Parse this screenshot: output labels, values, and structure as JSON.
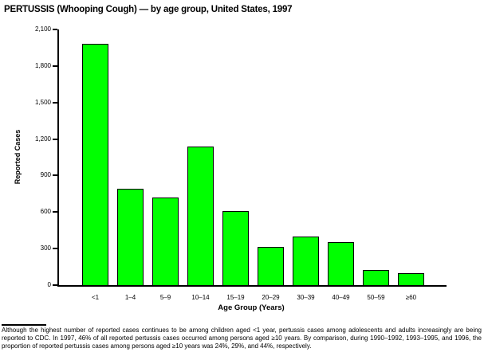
{
  "title": "PERTUSSIS (Whooping Cough) — by age group, United States, 1997",
  "chart_data": {
    "type": "bar",
    "title": "PERTUSSIS (Whooping Cough) — by age group, United States, 1997",
    "categories": [
      "<1",
      "1–4",
      "5–9",
      "10–14",
      "15–19",
      "20–29",
      "30–39",
      "40–49",
      "50–59",
      "≥60"
    ],
    "values": [
      1980,
      790,
      720,
      1140,
      610,
      315,
      400,
      350,
      125,
      95
    ],
    "xlabel": "Age Group (Years)",
    "ylabel": "Reported Cases",
    "ylim": [
      0,
      2100
    ],
    "ytick_step": 300,
    "ytick_labels": [
      "0",
      "300",
      "600",
      "900",
      "1,200",
      "1,500",
      "1,800",
      "2,100"
    ],
    "bar_color": "#00FF00",
    "bar_border_color": "#000000",
    "axis_color": "#000000",
    "grid": false,
    "legend": false
  },
  "footnote": "Although the highest number of reported cases continues to be among children aged <1 year, pertussis cases among adolescents and adults increasingly are being reported to CDC. In 1997, 46% of all reported pertussis cases occurred among persons aged ≥10 years. By comparison, during 1990–1992, 1993–1995, and 1996, the proportion of reported pertussis cases among persons aged ≥10 years was 24%, 29%, and 44%, respectively."
}
